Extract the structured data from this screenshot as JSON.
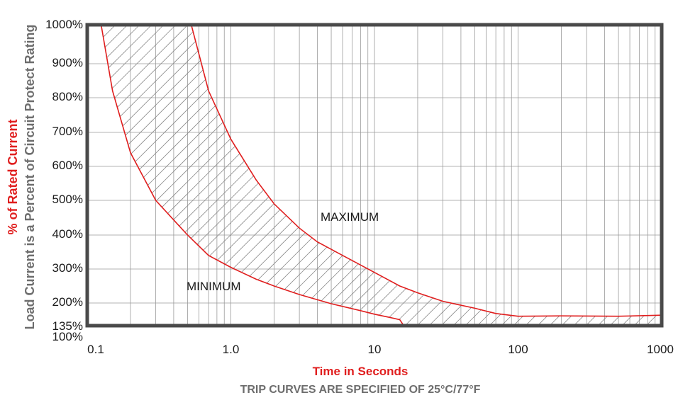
{
  "chart_data": {
    "type": "line",
    "title": "",
    "ylabel": "% of Rated Current",
    "ylabel_sub": "Load Current is a Percent of Circuit Protect Rating",
    "xlabel": "Time in Seconds",
    "caption": "TRIP CURVES ARE SPECIFIED OF 25°C/77°F",
    "x_scale": "log",
    "xlim": [
      0.1,
      1000
    ],
    "ylim": [
      100,
      1000
    ],
    "grid": true,
    "x_ticks": [
      "0.1",
      "1.0",
      "10",
      "100",
      "1000"
    ],
    "y_ticks": [
      "1000%",
      "900%",
      "800%",
      "700%",
      "600%",
      "500%",
      "400%",
      "300%",
      "200%",
      "135%",
      "100%"
    ],
    "y_tick_values": [
      1000,
      900,
      800,
      700,
      600,
      500,
      400,
      300,
      200,
      135,
      100
    ],
    "series": [
      {
        "name": "MAXIMUM",
        "x": [
          0.53,
          0.7,
          1.0,
          1.5,
          2.0,
          3.0,
          4.0,
          6.0,
          10,
          15,
          20,
          30,
          50,
          70,
          100,
          200,
          500,
          1000
        ],
        "y": [
          1000,
          820,
          680,
          560,
          490,
          420,
          380,
          340,
          290,
          250,
          230,
          205,
          185,
          170,
          162,
          163,
          162,
          165
        ]
      },
      {
        "name": "MINIMUM",
        "x": [
          0.125,
          0.15,
          0.2,
          0.3,
          0.5,
          0.7,
          1.0,
          1.5,
          2.0,
          3.0,
          5.0,
          8.0,
          10,
          13,
          15,
          16,
          30,
          100,
          1000
        ],
        "y": [
          1000,
          820,
          640,
          500,
          400,
          340,
          305,
          270,
          250,
          225,
          198,
          178,
          168,
          158,
          152,
          135,
          135,
          135,
          135
        ]
      }
    ],
    "annotations": [
      "MAXIMUM",
      "MINIMUM"
    ],
    "colors": {
      "curve": "#e01e1e",
      "grid": "#9a9a9a",
      "frame": "#4a4a4a",
      "hatch": "#8a8a8a"
    }
  }
}
